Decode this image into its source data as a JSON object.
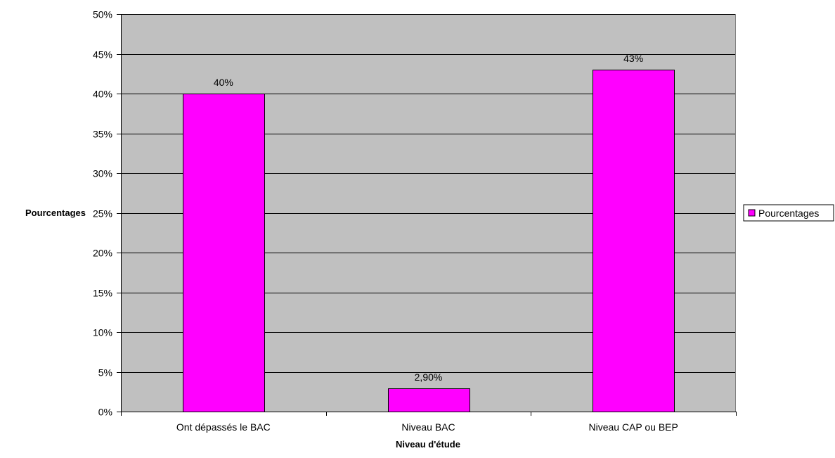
{
  "chart_data": {
    "type": "bar",
    "categories": [
      "Ont dépassés le BAC",
      "Niveau BAC",
      "Niveau CAP ou BEP"
    ],
    "series": [
      {
        "name": "Pourcentages",
        "values": [
          40,
          2.9,
          43
        ],
        "data_labels": [
          "40%",
          "2,90%",
          "43%"
        ]
      }
    ],
    "title": "",
    "xlabel": "Niveau d'étude",
    "ylabel": "Pourcentages",
    "ylim": [
      0,
      50
    ],
    "yticks": [
      0,
      5,
      10,
      15,
      20,
      25,
      30,
      35,
      40,
      45,
      50
    ],
    "ytick_labels": [
      "0%",
      "5%",
      "10%",
      "15%",
      "20%",
      "25%",
      "30%",
      "35%",
      "40%",
      "45%",
      "50%"
    ],
    "grid": true,
    "legend": {
      "position": "right",
      "entries": [
        "Pourcentages"
      ]
    },
    "colors": {
      "bar": "#FF00FF",
      "plot_background": "#C0C0C0",
      "grid": "#000000"
    }
  }
}
